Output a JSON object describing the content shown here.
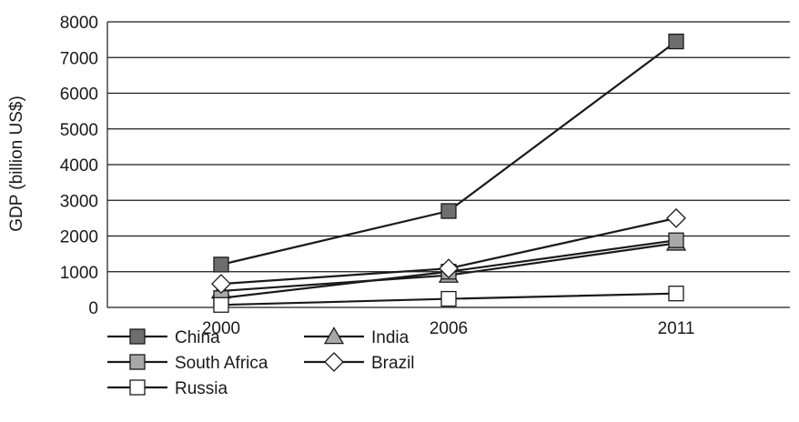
{
  "chart_data": {
    "type": "line",
    "title": "",
    "xlabel": "",
    "ylabel": "GDP (billion US$)",
    "categories": [
      "2000",
      "2006",
      "2011"
    ],
    "ylim": [
      0,
      8000
    ],
    "yticks": [
      0,
      1000,
      2000,
      3000,
      4000,
      5000,
      6000,
      7000,
      8000
    ],
    "grid": "horizontal",
    "legend_position": "bottom-left",
    "series": [
      {
        "name": "China",
        "marker": "square",
        "fill": "#6e6e6e",
        "values": [
          1200,
          2700,
          7450
        ]
      },
      {
        "name": "India",
        "marker": "triangle",
        "fill": "#a8a8a8",
        "values": [
          460,
          900,
          1800
        ]
      },
      {
        "name": "South Africa",
        "marker": "square",
        "fill": "#a8a8a8",
        "values": [
          260,
          1000,
          1880
        ]
      },
      {
        "name": "Brazil",
        "marker": "diamond",
        "fill": "#ffffff",
        "values": [
          660,
          1090,
          2500
        ]
      },
      {
        "name": "Russia",
        "marker": "square",
        "fill": "#ffffff",
        "values": [
          70,
          240,
          390
        ]
      }
    ]
  }
}
